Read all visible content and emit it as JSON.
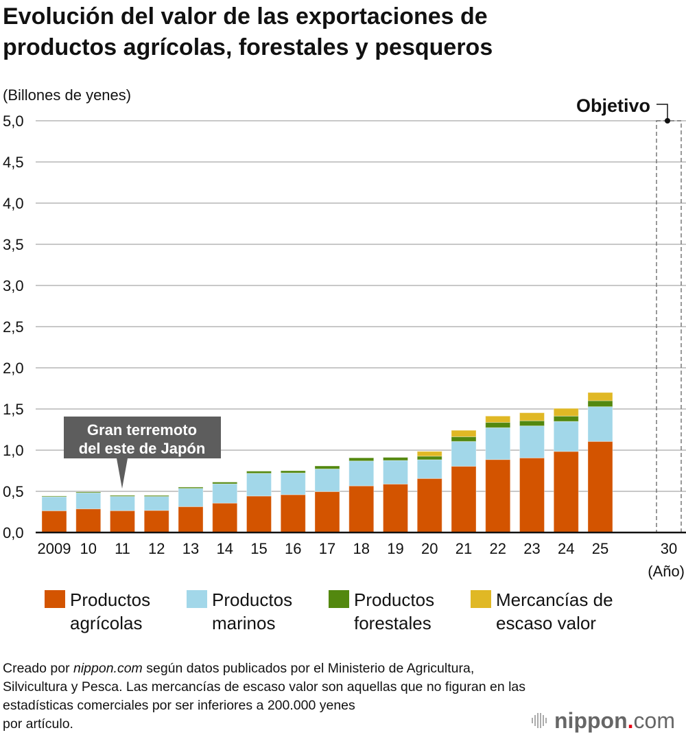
{
  "chart_data": {
    "type": "bar",
    "stacked": true,
    "title_lines": [
      "Evolución del valor de las exportaciones de",
      "productos agrícolas, forestales y pesqueros"
    ],
    "ylabel": "(Billones de yenes)",
    "xlabel": "(Año)",
    "ylim": [
      0,
      5.0
    ],
    "yticks": [
      "0,0",
      "0,5",
      "1,0",
      "1,5",
      "2,0",
      "2,5",
      "3,0",
      "3,5",
      "4,0",
      "4,5",
      "5,0"
    ],
    "grid": true,
    "categories": [
      "2009",
      "10",
      "11",
      "12",
      "13",
      "14",
      "15",
      "16",
      "17",
      "18",
      "19",
      "20",
      "21",
      "22",
      "23",
      "24",
      "25"
    ],
    "series": [
      {
        "name": "Productos agrícolas",
        "legend_lines": [
          "Productos",
          "agrícolas"
        ],
        "color": "#d35400",
        "values": [
          0.264,
          0.287,
          0.265,
          0.268,
          0.314,
          0.357,
          0.443,
          0.459,
          0.497,
          0.566,
          0.588,
          0.656,
          0.804,
          0.886,
          0.906,
          0.984,
          1.106
        ]
      },
      {
        "name": "Productos marinos",
        "legend_lines": [
          "Productos",
          "marinos"
        ],
        "color": "#a2d7e9",
        "values": [
          0.17,
          0.195,
          0.174,
          0.17,
          0.222,
          0.234,
          0.276,
          0.264,
          0.275,
          0.303,
          0.287,
          0.228,
          0.302,
          0.387,
          0.389,
          0.365,
          0.422
        ]
      },
      {
        "name": "Productos forestales",
        "legend_lines": [
          "Productos",
          "forestales"
        ],
        "color": "#53880f",
        "values": [
          0.009,
          0.011,
          0.012,
          0.012,
          0.015,
          0.021,
          0.026,
          0.027,
          0.036,
          0.038,
          0.037,
          0.043,
          0.057,
          0.064,
          0.062,
          0.065,
          0.072
        ]
      },
      {
        "name": "Mercancías de escaso valor",
        "legend_lines": [
          "Mercancías de",
          "escaso valor"
        ],
        "color": "#e0b825",
        "values": [
          0,
          0,
          0,
          0,
          0,
          0,
          0,
          0,
          0,
          0,
          0,
          0.058,
          0.078,
          0.077,
          0.097,
          0.093,
          0.1
        ]
      }
    ],
    "target": {
      "category": "30",
      "label": "Objetivo",
      "value": 5.0
    },
    "annotation": {
      "category": "11",
      "lines": [
        "Gran terremoto",
        "del este de Japón"
      ]
    },
    "legend_position": "bottom"
  },
  "footer": {
    "lines": [
      [
        "Creado por ",
        "nippon.com",
        " según datos publicados por el Ministerio de Agricultura,"
      ],
      [
        "Silvicultura y Pesca. Las mercancías de escaso valor son aquellas que no figuran en las"
      ],
      [
        "estadísticas comerciales por ser inferiores a 200.000 yenes"
      ],
      [
        "por artículo."
      ]
    ]
  },
  "logo": {
    "text": "nippon",
    "dot": ".",
    "suffix": "com"
  }
}
